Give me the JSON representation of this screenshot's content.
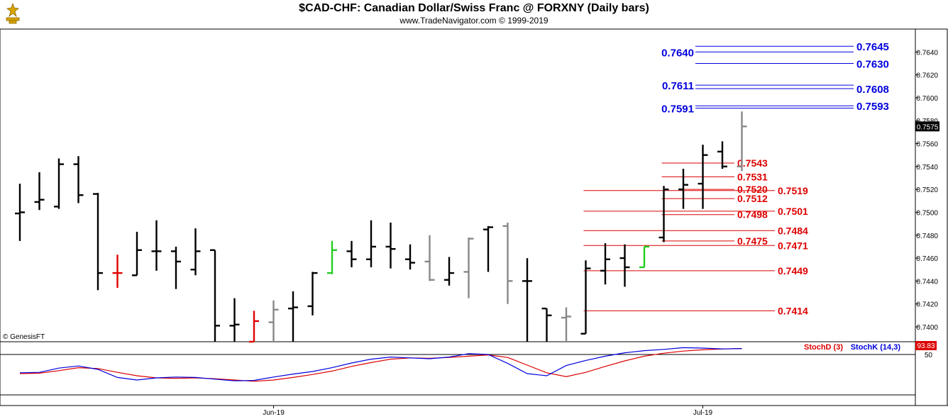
{
  "header": {
    "title": "$CAD-CHF:  Canadian Dollar/Swiss Franc @ FORXNY  (Daily bars)",
    "subtitle": "www.TradeNavigator.com © 1999-2019"
  },
  "copyright": "© GenesisFT",
  "colors": {
    "bar_black": "#000000",
    "bar_gray": "#888888",
    "bar_red": "#e00000",
    "bar_green": "#22cc22",
    "resistance": "#0000dd",
    "support": "#dd0000",
    "stochD": "#dd0000",
    "stochK": "#0000dd"
  },
  "chart_data": [
    {
      "type": "ohlc",
      "title": "$CAD-CHF:  Canadian Dollar/Swiss Franc @ FORXNY  (Daily bars)",
      "ylim": [
        0.7387,
        0.766
      ],
      "y_ticks": [
        0.74,
        0.742,
        0.744,
        0.746,
        0.748,
        0.75,
        0.752,
        0.754,
        0.756,
        0.758,
        0.76,
        0.762,
        0.764
      ],
      "y_tick_labels": [
        "0.7400",
        "0.7420",
        "0.7440",
        "0.7460",
        "0.7480",
        "0.7500",
        "0.7520",
        "0.7540",
        "0.7560",
        "0.7580",
        "0.7600",
        "0.7620",
        "0.7640"
      ],
      "x_labels": [
        {
          "bar": 13,
          "label": "Jun-19"
        },
        {
          "bar": 35,
          "label": "Jul-19"
        }
      ],
      "last_price": "0.7575",
      "bars": [
        {
          "o": 0.7499,
          "h": 0.7525,
          "l": 0.7475,
          "c": 0.75,
          "color": "black"
        },
        {
          "o": 0.7509,
          "h": 0.7535,
          "l": 0.7502,
          "c": 0.7511,
          "color": "black"
        },
        {
          "o": 0.7505,
          "h": 0.7547,
          "l": 0.7503,
          "c": 0.7542,
          "color": "black"
        },
        {
          "o": 0.7542,
          "h": 0.7549,
          "l": 0.7508,
          "c": 0.7515,
          "color": "black"
        },
        {
          "o": 0.7516,
          "h": 0.7517,
          "l": 0.7432,
          "c": 0.7447,
          "color": "black"
        },
        {
          "o": 0.7447,
          "h": 0.7463,
          "l": 0.7434,
          "c": 0.7447,
          "color": "red"
        },
        {
          "o": 0.7445,
          "h": 0.7483,
          "l": 0.7445,
          "c": 0.7467,
          "color": "black"
        },
        {
          "o": 0.7466,
          "h": 0.7493,
          "l": 0.7449,
          "c": 0.7466,
          "color": "black"
        },
        {
          "o": 0.7466,
          "h": 0.747,
          "l": 0.7433,
          "c": 0.7457,
          "color": "black"
        },
        {
          "o": 0.745,
          "h": 0.7486,
          "l": 0.7445,
          "c": 0.7466,
          "color": "black"
        },
        {
          "o": 0.7467,
          "h": 0.7467,
          "l": 0.7387,
          "c": 0.7401,
          "color": "black"
        },
        {
          "o": 0.7401,
          "h": 0.7425,
          "l": 0.7387,
          "c": 0.7402,
          "color": "black"
        },
        {
          "o": 0.7387,
          "h": 0.7414,
          "l": 0.7387,
          "c": 0.7405,
          "color": "red"
        },
        {
          "o": 0.7404,
          "h": 0.7423,
          "l": 0.7387,
          "c": 0.7415,
          "color": "gray"
        },
        {
          "o": 0.7416,
          "h": 0.7431,
          "l": 0.7387,
          "c": 0.7417,
          "color": "black"
        },
        {
          "o": 0.7418,
          "h": 0.7448,
          "l": 0.741,
          "c": 0.7447,
          "color": "black"
        },
        {
          "o": 0.7447,
          "h": 0.7475,
          "l": 0.7446,
          "c": 0.7467,
          "color": "green"
        },
        {
          "o": 0.7466,
          "h": 0.7475,
          "l": 0.7452,
          "c": 0.7459,
          "color": "black"
        },
        {
          "o": 0.7459,
          "h": 0.7493,
          "l": 0.7452,
          "c": 0.747,
          "color": "black"
        },
        {
          "o": 0.747,
          "h": 0.7491,
          "l": 0.7451,
          "c": 0.7468,
          "color": "black"
        },
        {
          "o": 0.7459,
          "h": 0.7472,
          "l": 0.745,
          "c": 0.7456,
          "color": "black"
        },
        {
          "o": 0.7457,
          "h": 0.748,
          "l": 0.744,
          "c": 0.7441,
          "color": "gray"
        },
        {
          "o": 0.7441,
          "h": 0.7461,
          "l": 0.7436,
          "c": 0.7447,
          "color": "black"
        },
        {
          "o": 0.7448,
          "h": 0.7478,
          "l": 0.7425,
          "c": 0.7477,
          "color": "gray"
        },
        {
          "o": 0.7485,
          "h": 0.7488,
          "l": 0.7448,
          "c": 0.7487,
          "color": "black"
        },
        {
          "o": 0.7488,
          "h": 0.7491,
          "l": 0.742,
          "c": 0.744,
          "color": "gray"
        },
        {
          "o": 0.744,
          "h": 0.746,
          "l": 0.7387,
          "c": 0.744,
          "color": "black"
        },
        {
          "o": 0.7416,
          "h": 0.7416,
          "l": 0.7387,
          "c": 0.741,
          "color": "black"
        },
        {
          "o": 0.7408,
          "h": 0.7417,
          "l": 0.7387,
          "c": 0.7409,
          "color": "gray"
        },
        {
          "o": 0.7394,
          "h": 0.7458,
          "l": 0.7394,
          "c": 0.7451,
          "color": "black"
        },
        {
          "o": 0.7449,
          "h": 0.7473,
          "l": 0.7437,
          "c": 0.7459,
          "color": "black"
        },
        {
          "o": 0.746,
          "h": 0.7472,
          "l": 0.7435,
          "c": 0.7452,
          "color": "black"
        },
        {
          "o": 0.7452,
          "h": 0.747,
          "l": 0.7452,
          "c": 0.747,
          "color": "green"
        },
        {
          "o": 0.7478,
          "h": 0.7523,
          "l": 0.7474,
          "c": 0.752,
          "color": "black"
        },
        {
          "o": 0.752,
          "h": 0.7538,
          "l": 0.7503,
          "c": 0.7524,
          "color": "black"
        },
        {
          "o": 0.7525,
          "h": 0.7559,
          "l": 0.7503,
          "c": 0.755,
          "color": "black"
        },
        {
          "o": 0.7553,
          "h": 0.7562,
          "l": 0.7538,
          "c": 0.754,
          "color": "black"
        },
        {
          "o": 0.754,
          "h": 0.7588,
          "l": 0.7536,
          "c": 0.7575,
          "color": "gray"
        }
      ],
      "resistance_levels": [
        {
          "value": 0.7645,
          "label": "0.7645",
          "side": "right"
        },
        {
          "value": 0.764,
          "label": "0.7640",
          "side": "left"
        },
        {
          "value": 0.763,
          "label": "0.7630",
          "side": "right"
        },
        {
          "value": 0.7611,
          "label": "0.7611",
          "side": "left"
        },
        {
          "value": 0.7608,
          "label": "0.7608",
          "side": "right"
        },
        {
          "value": 0.7593,
          "label": "0.7593",
          "side": "right"
        },
        {
          "value": 0.7591,
          "label": "0.7591",
          "side": "left"
        }
      ],
      "support_levels": [
        {
          "value": 0.7543,
          "label": "0.7543",
          "start_bar": 33,
          "label_col": "inner"
        },
        {
          "value": 0.7531,
          "label": "0.7531",
          "start_bar": 33,
          "label_col": "inner"
        },
        {
          "value": 0.752,
          "label": "0.7520",
          "start_bar": 34,
          "label_col": "inner"
        },
        {
          "value": 0.7519,
          "label": "0.7519",
          "start_bar": 29,
          "label_col": "outer"
        },
        {
          "value": 0.7512,
          "label": "0.7512",
          "start_bar": 33,
          "label_col": "inner"
        },
        {
          "value": 0.7501,
          "label": "0.7501",
          "start_bar": 29,
          "label_col": "outer"
        },
        {
          "value": 0.7498,
          "label": "0.7498",
          "start_bar": 33,
          "label_col": "inner"
        },
        {
          "value": 0.7484,
          "label": "0.7484",
          "start_bar": 29,
          "label_col": "outer"
        },
        {
          "value": 0.7475,
          "label": "0.7475",
          "start_bar": 33,
          "label_col": "inner"
        },
        {
          "value": 0.7471,
          "label": "0.7471",
          "start_bar": 29,
          "label_col": "outer"
        },
        {
          "value": 0.7449,
          "label": "0.7449",
          "start_bar": 29,
          "label_col": "outer"
        },
        {
          "value": 0.7414,
          "label": "0.7414",
          "start_bar": 29,
          "label_col": "outer"
        }
      ]
    },
    {
      "type": "line",
      "title": "",
      "ylim": [
        0,
        100
      ],
      "y_ticks": [
        50
      ],
      "y_tick_labels": [
        "50"
      ],
      "last_value": "93.83",
      "series": [
        {
          "name": "StochD (3)",
          "color": "#dd0000",
          "values": [
            35,
            36,
            42,
            49,
            47,
            38,
            30,
            25,
            24,
            25,
            23,
            20,
            17,
            20,
            26,
            33,
            41,
            52,
            61,
            69,
            72,
            71,
            73,
            76,
            79,
            73,
            55,
            37,
            28,
            38,
            52,
            65,
            76,
            83,
            88,
            91,
            93,
            94
          ]
        },
        {
          "name": "StochK (14,3)",
          "color": "#0000dd",
          "values": [
            37,
            38,
            48,
            53,
            45,
            26,
            20,
            25,
            27,
            26,
            22,
            18,
            19,
            27,
            34,
            40,
            49,
            60,
            69,
            74,
            72,
            70,
            74,
            82,
            80,
            59,
            35,
            30,
            54,
            66,
            76,
            84,
            89,
            92,
            96,
            95,
            93,
            94
          ]
        }
      ]
    }
  ]
}
